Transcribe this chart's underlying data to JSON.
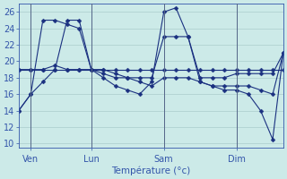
{
  "background_color": "#cceae8",
  "grid_color": "#aacccc",
  "line_color": "#1a3080",
  "title": "Température (°c)",
  "x_ticks_labels": [
    "Ven",
    "Lun",
    "Sam",
    "Dim"
  ],
  "x_ticks_positions": [
    8,
    48,
    96,
    144
  ],
  "xlim": [
    0,
    175
  ],
  "ylim": [
    9.5,
    27
  ],
  "yticks": [
    10,
    12,
    14,
    16,
    18,
    20,
    22,
    24,
    26
  ],
  "series": [
    {
      "x": [
        0,
        8,
        16,
        24,
        32,
        40,
        48,
        56,
        64,
        72,
        80,
        88,
        96,
        104,
        112,
        120,
        128,
        136,
        144,
        152,
        160,
        168,
        175
      ],
      "y": [
        19,
        19,
        19,
        19,
        19,
        19,
        19,
        19,
        19,
        19,
        19,
        19,
        19,
        19,
        19,
        19,
        19,
        19,
        19,
        19,
        19,
        19,
        19
      ]
    },
    {
      "x": [
        0,
        8,
        16,
        24,
        32,
        40,
        48,
        56,
        64,
        72,
        80,
        88,
        96,
        104,
        112,
        120,
        128,
        136,
        144,
        152,
        160,
        168,
        175
      ],
      "y": [
        14,
        16,
        17.5,
        19,
        25,
        25,
        19,
        18,
        17,
        16.5,
        16,
        17.5,
        26,
        26.5,
        23,
        17.5,
        17,
        16.5,
        16.5,
        16,
        14,
        10.5,
        21
      ]
    },
    {
      "x": [
        0,
        8,
        16,
        24,
        32,
        40,
        48,
        56,
        64,
        72,
        80,
        88,
        96,
        104,
        112,
        120,
        128,
        136,
        144,
        152,
        160,
        168,
        175
      ],
      "y": [
        14,
        16,
        25,
        25,
        24.5,
        24,
        19,
        19,
        18.5,
        18,
        18,
        18,
        23,
        23,
        23,
        18,
        18,
        18,
        18.5,
        18.5,
        18.5,
        18.5,
        21
      ]
    },
    {
      "x": [
        0,
        8,
        16,
        24,
        32,
        40,
        48,
        56,
        64,
        72,
        80,
        88,
        96,
        104,
        112,
        120,
        128,
        136,
        144,
        152,
        160,
        168,
        175
      ],
      "y": [
        19,
        19,
        19,
        19.5,
        19,
        19,
        19,
        18.5,
        18,
        18,
        17.5,
        17,
        18,
        18,
        18,
        17.5,
        17,
        17,
        17,
        17,
        16.5,
        16,
        21
      ]
    }
  ],
  "vline_positions": [
    8,
    48,
    96,
    144
  ],
  "marker": "D",
  "markersize": 2.5
}
